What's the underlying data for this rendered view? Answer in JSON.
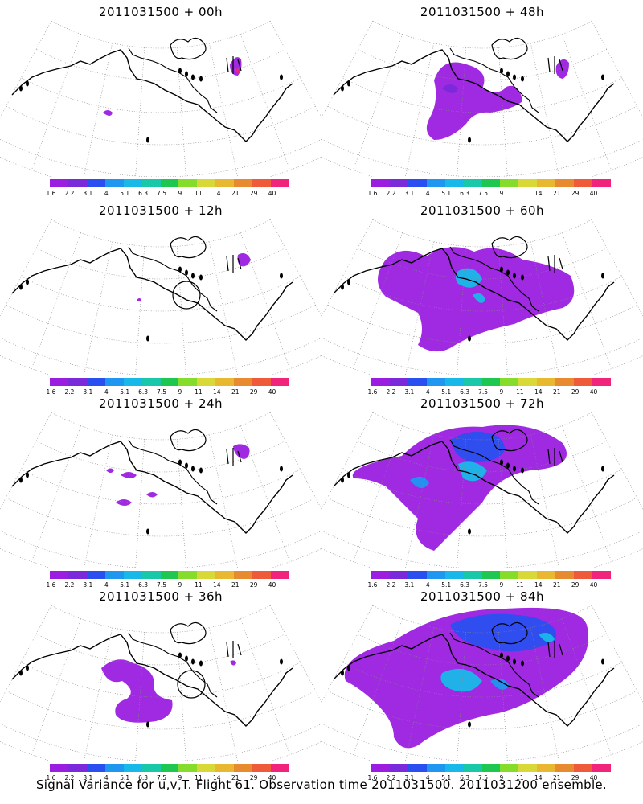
{
  "panels": [
    {
      "title": "2011031500 + 00h",
      "col": 0,
      "row": 0,
      "blobs": [],
      "circle": false
    },
    {
      "title": "2011031500 + 12h",
      "col": 0,
      "row": 1,
      "blobs": [],
      "circle": true
    },
    {
      "title": "2011031500 + 24h",
      "col": 0,
      "row": 2,
      "blobs": [],
      "circle": false
    },
    {
      "title": "2011031500 + 36h",
      "col": 0,
      "row": 3,
      "blobs": [],
      "circle": true
    },
    {
      "title": "2011031500 + 48h",
      "col": 1,
      "row": 0,
      "blobs": [],
      "circle": false
    },
    {
      "title": "2011031500 + 60h",
      "col": 1,
      "row": 1,
      "blobs": [],
      "circle": false
    },
    {
      "title": "2011031500 + 72h",
      "col": 1,
      "row": 2,
      "blobs": [],
      "circle": false
    },
    {
      "title": "2011031500 + 84h",
      "col": 1,
      "row": 3,
      "blobs": [],
      "circle": false
    }
  ],
  "colorbar": {
    "colors": [
      "#9b1ee0",
      "#7a2ad8",
      "#2a4ff0",
      "#1f96f0",
      "#18b8e8",
      "#19c8a8",
      "#1ec850",
      "#86dc2a",
      "#d8d838",
      "#e8b830",
      "#e88a30",
      "#ee5a3a",
      "#f0247a"
    ],
    "labels": [
      "1.6",
      "2.2",
      "3.1",
      "4",
      "5.1",
      "6.3",
      "7.5",
      "9",
      "11",
      "14",
      "21",
      "29",
      "40"
    ]
  },
  "caption": "Signal Variance for u,v,T. Flight 61. Observation time 2011031500. 2011031200 ensemble."
}
